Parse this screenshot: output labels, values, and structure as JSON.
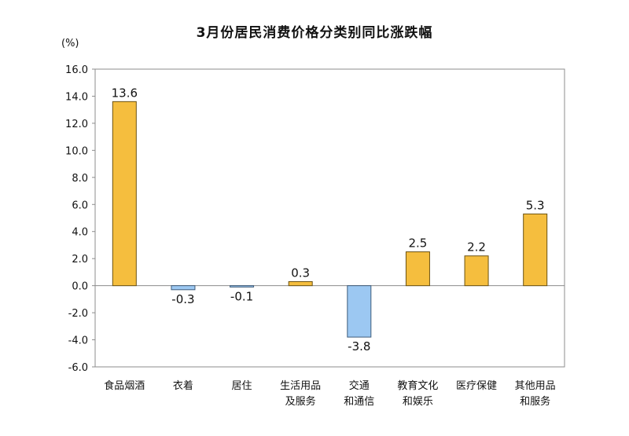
{
  "chart_data": {
    "type": "bar",
    "title": "3月份居民消费价格分类别同比涨跌幅",
    "unit": "(%)",
    "categories": [
      [
        "食品烟酒"
      ],
      [
        "衣着"
      ],
      [
        "居住"
      ],
      [
        "生活用品",
        "及服务"
      ],
      [
        "交通",
        "和通信"
      ],
      [
        "教育文化",
        "和娱乐"
      ],
      [
        "医疗保健"
      ],
      [
        "其他用品",
        "和服务"
      ]
    ],
    "values": [
      13.6,
      -0.3,
      -0.1,
      0.3,
      -3.8,
      2.5,
      2.2,
      5.3
    ],
    "value_labels": [
      "13.6",
      "-0.3",
      "-0.1",
      "0.3",
      "-3.8",
      "2.5",
      "2.2",
      "5.3"
    ],
    "ylim": [
      -6.0,
      16.0
    ],
    "yticks": [
      "16.0",
      "14.0",
      "12.0",
      "10.0",
      "8.0",
      "6.0",
      "4.0",
      "2.0",
      "0.0",
      "-2.0",
      "-4.0",
      "-6.0"
    ],
    "grid": false,
    "legend": "none",
    "colors": {
      "positive": "#F5BE3E",
      "negative": "#9CC8F2",
      "positive_stroke": "#6B5212",
      "negative_stroke": "#3F5C7A"
    }
  }
}
